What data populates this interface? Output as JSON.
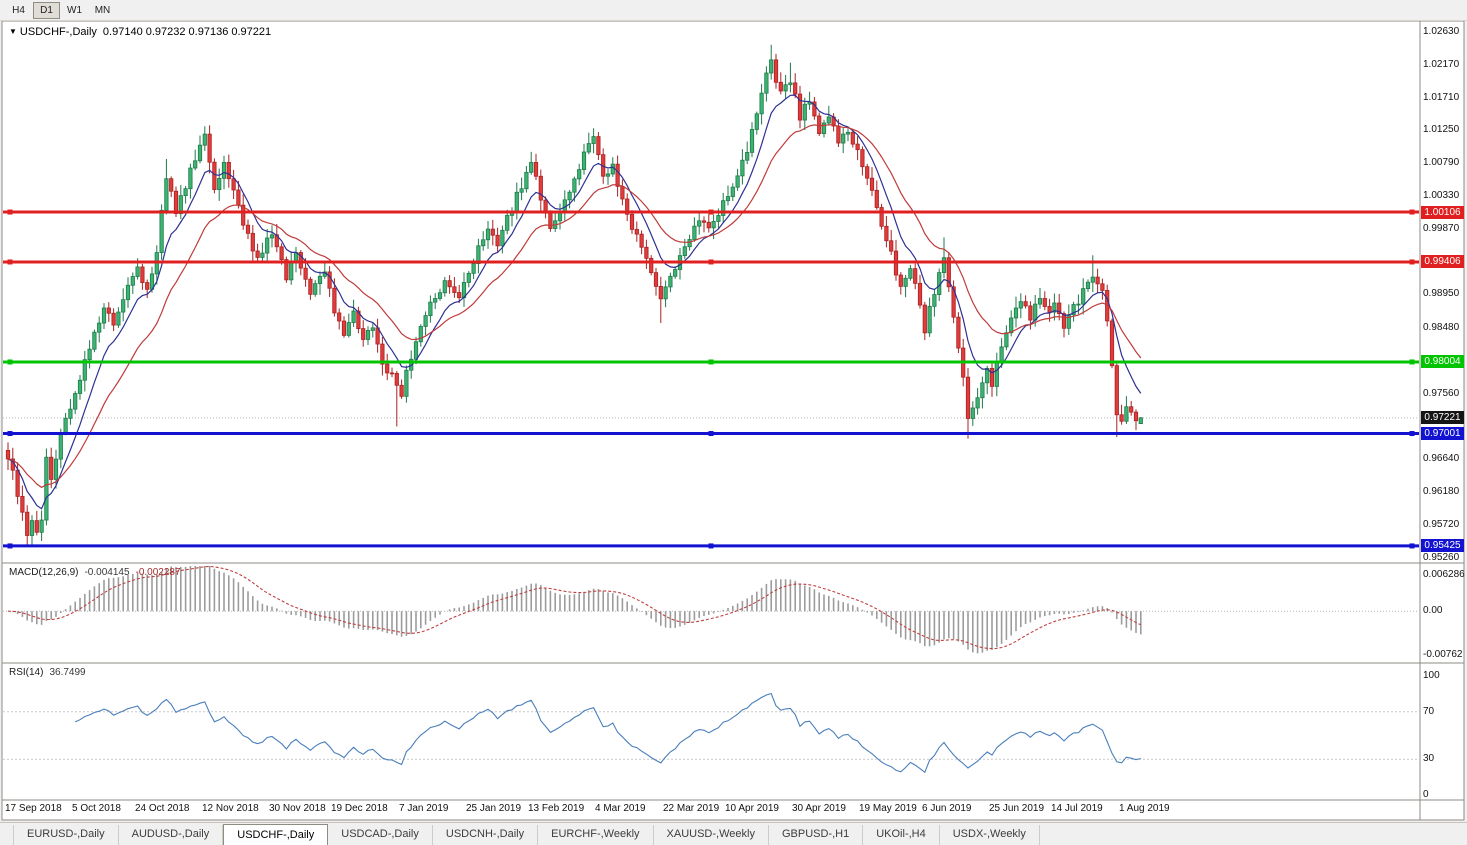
{
  "toolbar": {
    "timeframes": [
      {
        "label": "H4",
        "active": false
      },
      {
        "label": "D1",
        "active": true
      },
      {
        "label": "W1",
        "active": false
      },
      {
        "label": "MN",
        "active": false
      }
    ]
  },
  "chart": {
    "title": "USDCHF-,Daily",
    "ohlc_text": "0.97140 0.97232 0.97136 0.97221"
  },
  "indicators": {
    "macd": {
      "label": "MACD(12,26,9)",
      "value_main": "-0.004145",
      "value_signal": "-0.002287"
    },
    "rsi": {
      "label": "RSI(14)",
      "value": "36.7499"
    }
  },
  "tabs": {
    "items": [
      "EURUSD-,Daily",
      "AUDUSD-,Daily",
      "USDCHF-,Daily",
      "USDCAD-,Daily",
      "USDCNH-,Daily",
      "EURCHF-,Weekly",
      "XAUUSD-,Weekly",
      "GBPUSD-,H1",
      "UKOil-,H4",
      "USDX-,Weekly"
    ],
    "active_index": 2
  },
  "chart_data": {
    "type": "candlestick",
    "symbol": "USDCHF",
    "timeframe": "Daily",
    "bars": 237,
    "last_ohlc": {
      "open": 0.9714,
      "high": 0.97232,
      "low": 0.97136,
      "close": 0.97221
    },
    "colors": {
      "up": "#3cb371",
      "up_stroke": "#1e7a4a",
      "down": "#e23b3b",
      "down_stroke": "#a82222"
    },
    "price_axis_labels": [
      "1.02630",
      "1.02170",
      "1.01710",
      "1.01250",
      "1.00790",
      "1.00330",
      "0.99870",
      "0.98950",
      "0.98480",
      "0.97560",
      "0.96640",
      "0.96180",
      "0.95720",
      "0.95260"
    ],
    "badges": [
      {
        "text": "1.00106",
        "price": 1.00106,
        "bg": "#e02020"
      },
      {
        "text": "0.99406",
        "price": 0.99406,
        "bg": "#e02020"
      },
      {
        "text": "0.98004",
        "price": 0.98004,
        "bg": "#00c400"
      },
      {
        "text": "0.97221",
        "price": 0.97221,
        "bg": "#151515"
      },
      {
        "text": "0.97001",
        "price": 0.97001,
        "bg": "#1212d0"
      },
      {
        "text": "0.95425",
        "price": 0.95425,
        "bg": "#1212d0"
      }
    ],
    "hlines": [
      {
        "price": 1.00106,
        "color": "#e02020",
        "width": 3
      },
      {
        "price": 0.99406,
        "color": "#e02020",
        "width": 3
      },
      {
        "price": 0.98004,
        "color": "#00c400",
        "width": 3
      },
      {
        "price": 0.97001,
        "color": "#1212d0",
        "width": 3
      },
      {
        "price": 0.95425,
        "color": "#1212d0",
        "width": 3
      }
    ],
    "moving_averages": [
      {
        "period": 8,
        "type": "ema",
        "color": "#2e3192"
      },
      {
        "period": 20,
        "type": "ema",
        "color": "#c03a3a"
      }
    ],
    "close_anchors": [
      [
        0,
        0.9668
      ],
      [
        1,
        0.9645
      ],
      [
        2,
        0.9612
      ],
      [
        4,
        0.9556
      ],
      [
        5,
        0.9582
      ],
      [
        6,
        0.956
      ],
      [
        7,
        0.9575
      ],
      [
        8,
        0.9662
      ],
      [
        9,
        0.964
      ],
      [
        11,
        0.97
      ],
      [
        13,
        0.9738
      ],
      [
        15,
        0.9778
      ],
      [
        18,
        0.9838
      ],
      [
        20,
        0.9878
      ],
      [
        22,
        0.985
      ],
      [
        25,
        0.9903
      ],
      [
        27,
        0.9933
      ],
      [
        29,
        0.99
      ],
      [
        31,
        0.9958
      ],
      [
        33,
        1.0058
      ],
      [
        35,
        1.0012
      ],
      [
        37,
        1.0048
      ],
      [
        39,
        1.0088
      ],
      [
        41,
        1.0118
      ],
      [
        43,
        1.004
      ],
      [
        45,
        1.0085
      ],
      [
        47,
        1.004
      ],
      [
        49,
        0.9992
      ],
      [
        52,
        0.9945
      ],
      [
        55,
        0.9983
      ],
      [
        58,
        0.992
      ],
      [
        60,
        0.995
      ],
      [
        63,
        0.9895
      ],
      [
        66,
        0.9932
      ],
      [
        68,
        0.9872
      ],
      [
        70,
        0.984
      ],
      [
        72,
        0.9868
      ],
      [
        74,
        0.983
      ],
      [
        76,
        0.985
      ],
      [
        78,
        0.98
      ],
      [
        80,
        0.9782
      ],
      [
        82,
        0.9756
      ],
      [
        84,
        0.981
      ],
      [
        86,
        0.9845
      ],
      [
        88,
        0.988
      ],
      [
        91,
        0.9915
      ],
      [
        94,
        0.989
      ],
      [
        96,
        0.9925
      ],
      [
        98,
        0.9958
      ],
      [
        100,
        0.999
      ],
      [
        102,
        0.9965
      ],
      [
        104,
        1.0
      ],
      [
        106,
        1.0035
      ],
      [
        108,
        1.0062
      ],
      [
        109,
        1.008
      ],
      [
        111,
        1.003
      ],
      [
        113,
        0.9985
      ],
      [
        115,
        1.0005
      ],
      [
        117,
        1.004
      ],
      [
        119,
        1.0075
      ],
      [
        121,
        1.0108
      ],
      [
        122,
        1.0118
      ],
      [
        124,
        1.0055
      ],
      [
        126,
        1.0078
      ],
      [
        128,
        1.0025
      ],
      [
        130,
        0.999
      ],
      [
        133,
        0.995
      ],
      [
        136,
        0.989
      ],
      [
        138,
        0.992
      ],
      [
        140,
        0.995
      ],
      [
        142,
        0.9975
      ],
      [
        144,
        1.0
      ],
      [
        146,
        0.9985
      ],
      [
        148,
        1.001
      ],
      [
        150,
        1.0035
      ],
      [
        152,
        1.0065
      ],
      [
        154,
        1.01
      ],
      [
        156,
        1.015
      ],
      [
        158,
        1.02
      ],
      [
        159,
        1.0218
      ],
      [
        161,
        1.0175
      ],
      [
        163,
        1.0195
      ],
      [
        165,
        1.0145
      ],
      [
        167,
        1.0168
      ],
      [
        169,
        1.0125
      ],
      [
        171,
        1.0148
      ],
      [
        173,
        1.0105
      ],
      [
        175,
        1.0128
      ],
      [
        178,
        1.0075
      ],
      [
        180,
        1.004
      ],
      [
        182,
        0.9995
      ],
      [
        184,
        0.995
      ],
      [
        186,
        0.9905
      ],
      [
        188,
        0.9935
      ],
      [
        190,
        0.988
      ],
      [
        191,
        0.9845
      ],
      [
        193,
        0.99
      ],
      [
        195,
        0.9952
      ],
      [
        197,
        0.986
      ],
      [
        199,
        0.978
      ],
      [
        200,
        0.9722
      ],
      [
        202,
        0.9752
      ],
      [
        204,
        0.979
      ],
      [
        205,
        0.9772
      ],
      [
        207,
        0.982
      ],
      [
        209,
        0.9858
      ],
      [
        211,
        0.989
      ],
      [
        213,
        0.9865
      ],
      [
        215,
        0.9895
      ],
      [
        217,
        0.9872
      ],
      [
        218,
        0.9882
      ],
      [
        220,
        0.9852
      ],
      [
        222,
        0.9875
      ],
      [
        224,
        0.99
      ],
      [
        226,
        0.9918
      ],
      [
        228,
        0.9895
      ],
      [
        229,
        0.9862
      ],
      [
        230,
        0.98
      ],
      [
        231,
        0.9732
      ],
      [
        232,
        0.9716
      ],
      [
        233,
        0.9742
      ],
      [
        234,
        0.973
      ],
      [
        235,
        0.9716
      ],
      [
        236,
        0.97221
      ]
    ],
    "spikes": [
      {
        "b": 4,
        "lo": 0.95425
      },
      {
        "b": 33,
        "hi": 1.0085
      },
      {
        "b": 41,
        "hi": 1.0128
      },
      {
        "b": 81,
        "lo": 0.971
      },
      {
        "b": 109,
        "hi": 1.0095
      },
      {
        "b": 122,
        "hi": 1.0128
      },
      {
        "b": 136,
        "lo": 0.9855
      },
      {
        "b": 159,
        "hi": 1.0245
      },
      {
        "b": 163,
        "hi": 1.022
      },
      {
        "b": 195,
        "hi": 0.9975
      },
      {
        "b": 200,
        "lo": 0.9693
      },
      {
        "b": 226,
        "hi": 0.995
      },
      {
        "b": 231,
        "lo": 0.9695
      }
    ],
    "macd": {
      "fast": 12,
      "slow": 26,
      "signal": 9,
      "histogram_color": "#9c9c9c",
      "signal_color": "#c04040",
      "axis": [
        {
          "t": "0.006286",
          "v": 0.006286
        },
        {
          "t": "0.00",
          "v": 0
        },
        {
          "t": "-0.00762",
          "v": -0.00762
        }
      ]
    },
    "rsi": {
      "period": 14,
      "current": 36.7499,
      "color": "#4a7ebb",
      "levels": [
        70,
        30
      ],
      "axis": [
        {
          "t": "100",
          "v": 100
        },
        {
          "t": "70",
          "v": 70
        },
        {
          "t": "30",
          "v": 30
        },
        {
          "t": "0",
          "v": 0
        }
      ]
    },
    "date_ticks": [
      {
        "b": 0,
        "label": "17 Sep 2018"
      },
      {
        "b": 14,
        "label": "5 Oct 2018"
      },
      {
        "b": 27,
        "label": "24 Oct 2018"
      },
      {
        "b": 41,
        "label": "12 Nov 2018"
      },
      {
        "b": 55,
        "label": "30 Nov 2018"
      },
      {
        "b": 68,
        "label": "19 Dec 2018"
      },
      {
        "b": 82,
        "label": "7 Jan 2019"
      },
      {
        "b": 96,
        "label": "25 Jan 2019"
      },
      {
        "b": 109,
        "label": "13 Feb 2019"
      },
      {
        "b": 123,
        "label": "4 Mar 2019"
      },
      {
        "b": 137,
        "label": "22 Mar 2019"
      },
      {
        "b": 150,
        "label": "10 Apr 2019"
      },
      {
        "b": 164,
        "label": "30 Apr 2019"
      },
      {
        "b": 178,
        "label": "19 May 2019"
      },
      {
        "b": 191,
        "label": "6 Jun 2019"
      },
      {
        "b": 205,
        "label": "25 Jun 2019"
      },
      {
        "b": 218,
        "label": "14 Jul 2019"
      },
      {
        "b": 232,
        "label": "1 Aug 2019"
      }
    ]
  }
}
